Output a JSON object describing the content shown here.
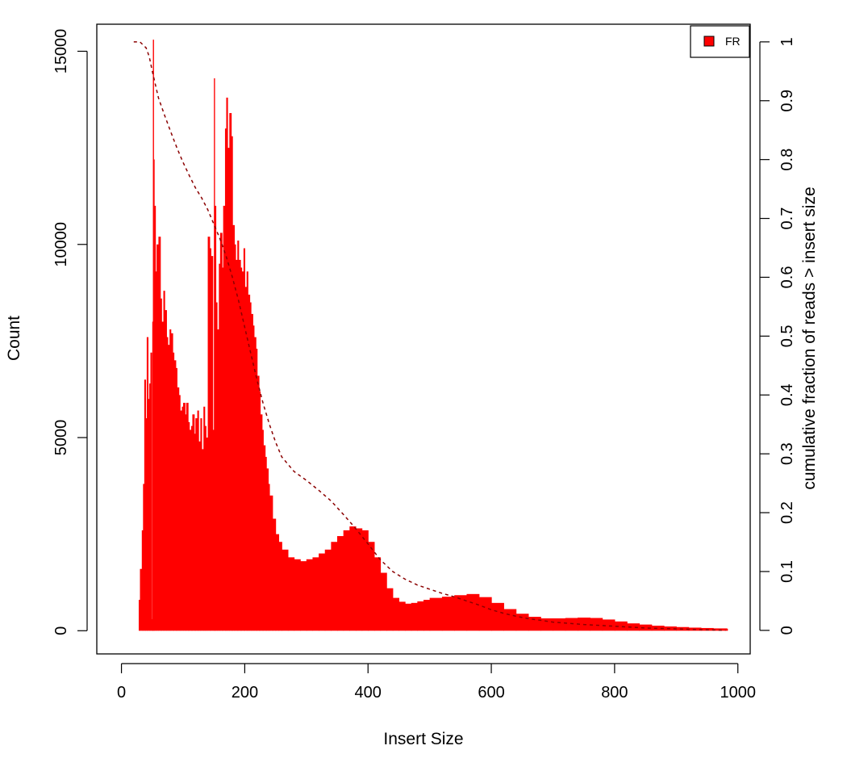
{
  "colors": {
    "histogram": "#ff0000",
    "cumulative_line": "#8b0000",
    "legend_swatch": "#ff0000",
    "frame": "#000000"
  },
  "chart_data": {
    "type": "area",
    "title": "",
    "xlabel": "Insert Size",
    "ylabel": "Count",
    "y2label": "cumulative fraction of reads > insert size",
    "xlim": [
      -40,
      1020
    ],
    "ylim": [
      -600,
      15700
    ],
    "y2lim": [
      -0.04,
      1.03
    ],
    "xticks": [
      0,
      200,
      400,
      600,
      800,
      1000
    ],
    "yticks": [
      0,
      5000,
      10000,
      15000
    ],
    "y2ticks": [
      0,
      0.1,
      0.2,
      0.3,
      0.4,
      0.5,
      0.6,
      0.7,
      0.8,
      0.9,
      1
    ],
    "legend": {
      "position": "top-right",
      "entries": [
        "FR"
      ]
    },
    "grid": false,
    "series": [
      {
        "name": "FR",
        "kind": "histogram",
        "x": [
          22,
          25,
          28,
          30,
          33,
          35,
          37,
          39,
          41,
          43,
          45,
          47,
          49,
          50,
          51,
          52,
          53,
          55,
          57,
          60,
          63,
          65,
          68,
          70,
          73,
          75,
          78,
          80,
          83,
          85,
          88,
          90,
          93,
          95,
          98,
          100,
          103,
          105,
          108,
          110,
          113,
          115,
          118,
          120,
          123,
          125,
          128,
          130,
          133,
          135,
          137,
          140,
          143,
          145,
          148,
          150,
          151,
          153,
          155,
          158,
          160,
          163,
          165,
          168,
          170,
          172,
          175,
          178,
          180,
          183,
          185,
          188,
          190,
          193,
          195,
          198,
          200,
          203,
          205,
          208,
          210,
          213,
          215,
          218,
          220,
          223,
          225,
          228,
          230,
          233,
          235,
          238,
          240,
          245,
          250,
          255,
          260,
          270,
          280,
          290,
          300,
          310,
          320,
          330,
          340,
          350,
          360,
          370,
          380,
          390,
          400,
          410,
          420,
          430,
          440,
          450,
          460,
          470,
          480,
          490,
          500,
          520,
          540,
          560,
          580,
          600,
          620,
          640,
          660,
          680,
          700,
          720,
          740,
          760,
          780,
          800,
          820,
          840,
          860,
          880,
          900,
          920,
          940,
          960,
          982
        ],
        "y": [
          0,
          0,
          800,
          1600,
          2600,
          3800,
          6500,
          5500,
          7600,
          6000,
          6400,
          7200,
          300,
          8000,
          15300,
          12200,
          11000,
          9300,
          10000,
          10200,
          8600,
          8000,
          8800,
          8300,
          7600,
          7400,
          7800,
          7700,
          7200,
          7000,
          6800,
          6300,
          6100,
          5700,
          5800,
          5900,
          5600,
          5900,
          5400,
          5200,
          5300,
          5600,
          5100,
          5500,
          5700,
          4900,
          5500,
          4700,
          5800,
          5300,
          5000,
          10200,
          9900,
          9700,
          5200,
          14300,
          11000,
          8500,
          7800,
          9500,
          10300,
          9400,
          11000,
          13000,
          13800,
          12500,
          13400,
          12800,
          10500,
          10000,
          9600,
          10100,
          9600,
          9400,
          9300,
          9900,
          8900,
          9300,
          8700,
          8500,
          8200,
          7900,
          7600,
          7300,
          6600,
          6200,
          5600,
          5200,
          4800,
          4500,
          4200,
          3800,
          3500,
          2900,
          2500,
          2300,
          2100,
          1900,
          1850,
          1800,
          1850,
          1900,
          2000,
          2100,
          2300,
          2450,
          2600,
          2700,
          2650,
          2600,
          2300,
          1900,
          1500,
          1100,
          850,
          750,
          700,
          720,
          760,
          800,
          850,
          880,
          920,
          950,
          870,
          720,
          560,
          440,
          360,
          320,
          320,
          330,
          340,
          330,
          290,
          240,
          190,
          160,
          130,
          110,
          95,
          80,
          70,
          60,
          50
        ]
      },
      {
        "name": "",
        "kind": "cumulative",
        "axis": "right",
        "x": [
          20,
          30,
          40,
          45,
          50,
          60,
          70,
          80,
          90,
          100,
          110,
          120,
          130,
          140,
          150,
          160,
          170,
          180,
          190,
          200,
          210,
          220,
          230,
          240,
          250,
          260,
          280,
          300,
          320,
          340,
          360,
          380,
          400,
          420,
          440,
          460,
          480,
          500,
          520,
          540,
          560,
          580,
          600,
          620,
          640,
          660,
          680,
          700,
          750,
          800,
          850,
          900,
          950,
          980
        ],
        "y": [
          1.0,
          1.0,
          0.99,
          0.975,
          0.95,
          0.905,
          0.875,
          0.847,
          0.82,
          0.795,
          0.773,
          0.752,
          0.735,
          0.715,
          0.69,
          0.665,
          0.635,
          0.6,
          0.56,
          0.515,
          0.47,
          0.425,
          0.385,
          0.35,
          0.32,
          0.295,
          0.27,
          0.255,
          0.238,
          0.22,
          0.197,
          0.173,
          0.147,
          0.12,
          0.1,
          0.087,
          0.077,
          0.07,
          0.063,
          0.057,
          0.05,
          0.043,
          0.035,
          0.029,
          0.024,
          0.02,
          0.017,
          0.014,
          0.01,
          0.007,
          0.004,
          0.0025,
          0.001,
          0.0
        ]
      }
    ]
  }
}
